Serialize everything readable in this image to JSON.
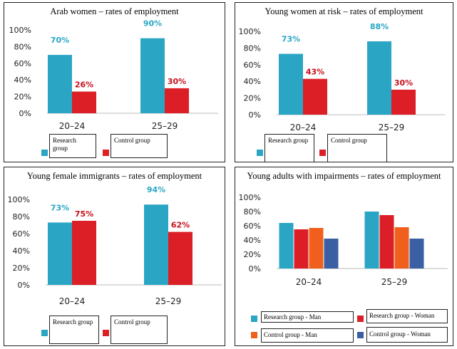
{
  "colors": {
    "research": "#2aa6c4",
    "control": "#dc1f26",
    "man_control": "#f0601c",
    "woman_control": "#3a5fa3",
    "label_research": "#2aa6c4",
    "label_control": "#c8101c"
  },
  "chart_data": [
    {
      "type": "bar",
      "title": "Arab women – rates of employment",
      "categories": [
        "20–24",
        "25–29"
      ],
      "ylim": [
        0,
        100
      ],
      "yticks": [
        "0%",
        "20%",
        "40%",
        "60%",
        "80%",
        "100%"
      ],
      "series": [
        {
          "name": "Research group",
          "color_key": "research",
          "values": [
            70,
            90
          ],
          "labels": [
            "70%",
            "90%"
          ]
        },
        {
          "name": "Control group",
          "color_key": "control",
          "values": [
            26,
            30
          ],
          "labels": [
            "26%",
            "30%"
          ]
        }
      ],
      "legend": [
        "Research group",
        "Control group"
      ]
    },
    {
      "type": "bar",
      "title": "Young women at risk – rates of employment",
      "categories": [
        "20–24",
        "25–29"
      ],
      "ylim": [
        0,
        100
      ],
      "yticks": [
        "0%",
        "20%",
        "40%",
        "60%",
        "80%",
        "100%"
      ],
      "series": [
        {
          "name": "Research group",
          "color_key": "research",
          "values": [
            73,
            88
          ],
          "labels": [
            "73%",
            "88%"
          ]
        },
        {
          "name": "Control group",
          "color_key": "control",
          "values": [
            43,
            30
          ],
          "labels": [
            "43%",
            "30%"
          ]
        }
      ],
      "legend": [
        "Research group",
        "Control group"
      ]
    },
    {
      "type": "bar",
      "title": "Young female immigrants – rates of employment",
      "categories": [
        "20–24",
        "25–29"
      ],
      "ylim": [
        0,
        100
      ],
      "yticks": [
        "0%",
        "20%",
        "40%",
        "60%",
        "80%",
        "100%"
      ],
      "series": [
        {
          "name": "Research group",
          "color_key": "research",
          "values": [
            73,
            94
          ],
          "labels": [
            "73%",
            "94%"
          ]
        },
        {
          "name": "Control group",
          "color_key": "control",
          "values": [
            75,
            62
          ],
          "labels": [
            "75%",
            "62%"
          ]
        }
      ],
      "legend": [
        "Research group",
        "Control group"
      ]
    },
    {
      "type": "bar",
      "title": "Young adults with impairments – rates of employment",
      "categories": [
        "20–24",
        "25–29"
      ],
      "ylim": [
        0,
        100
      ],
      "yticks": [
        "0%",
        "20%",
        "40%",
        "60%",
        "80%",
        "100%"
      ],
      "series": [
        {
          "name": "Research group - Man",
          "color_key": "research",
          "values": [
            64,
            80
          ],
          "labels": []
        },
        {
          "name": "Research group - Woman",
          "color_key": "control",
          "values": [
            55,
            75
          ],
          "labels": []
        },
        {
          "name": "Control group - Man",
          "color_key": "man_control",
          "values": [
            57,
            58
          ],
          "labels": []
        },
        {
          "name": "Control group - Woman",
          "color_key": "woman_control",
          "values": [
            42,
            42
          ],
          "labels": []
        }
      ],
      "legend": [
        "Research group - Man",
        "Research group - Woman",
        "Control group - Man",
        "Control group - Woman"
      ]
    }
  ]
}
